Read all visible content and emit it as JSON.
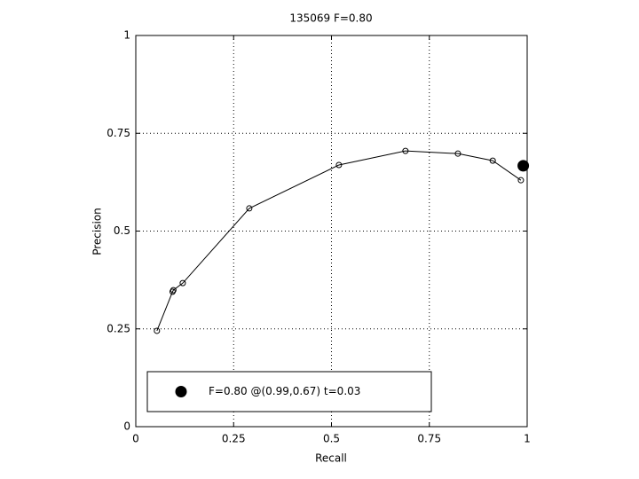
{
  "chart_data": {
    "type": "line",
    "title": "135069 F=0.80",
    "xlabel": "Recall",
    "ylabel": "Precision",
    "xlim": [
      0,
      1
    ],
    "ylim": [
      0,
      1
    ],
    "xticks": [
      0,
      0.25,
      0.5,
      0.75,
      1
    ],
    "yticks": [
      0,
      0.25,
      0.5,
      0.75,
      1
    ],
    "grid": true,
    "series": [
      {
        "color": "#000000",
        "marker": "circle",
        "x": [
          0.054,
          0.094,
          0.096,
          0.12,
          0.29,
          0.519,
          0.689,
          0.823,
          0.912,
          0.984
        ],
        "values": [
          0.245,
          0.345,
          0.349,
          0.367,
          0.558,
          0.669,
          0.705,
          0.698,
          0.68,
          0.63
        ]
      },
      {
        "name": "F=0.80 @(0.99,0.67) t=0.03",
        "color": "#000000",
        "marker": "dot",
        "x": [
          0.99
        ],
        "values": [
          0.667
        ]
      }
    ],
    "legend": "lower-left"
  }
}
